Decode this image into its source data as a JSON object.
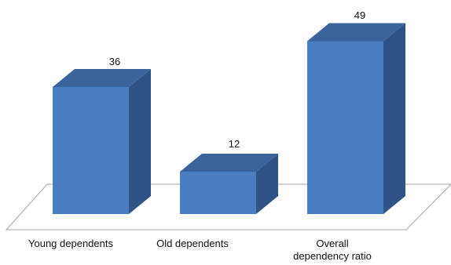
{
  "chart_data": {
    "type": "bar",
    "style": "3d-column",
    "categories": [
      "Young dependents",
      "Old dependents",
      "Overall dependency ratio"
    ],
    "values": [
      36,
      12,
      49
    ],
    "data_labels": [
      "36",
      "12",
      "49"
    ],
    "ylim": [
      0,
      49
    ],
    "grid": false,
    "legend": "none",
    "colors": {
      "front": "#4a7cc0",
      "side": "#2f5384",
      "top": "#3a639b",
      "floor_stroke": "#a6a6a6"
    }
  }
}
